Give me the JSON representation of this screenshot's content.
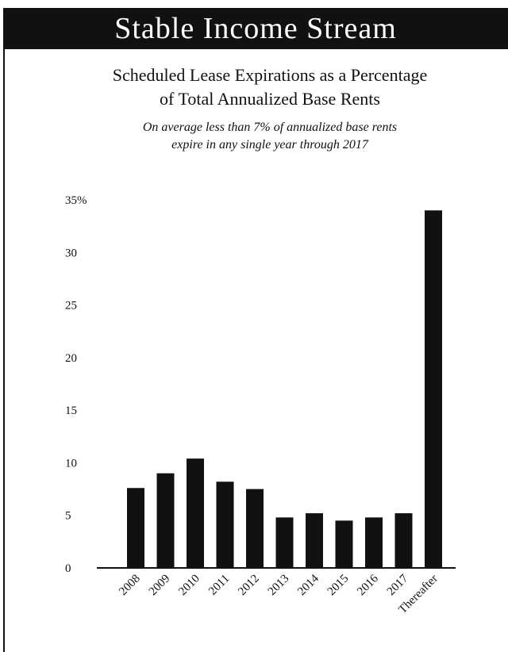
{
  "header": {
    "title": "Stable Income Stream"
  },
  "chart_data": {
    "type": "bar",
    "title_line1": "Scheduled Lease Expirations as a Percentage",
    "title_line2": "of Total Annualized Base Rents",
    "subtitle_line1": "On average less than 7% of annualized base rents",
    "subtitle_line2": "expire in any single year through 2017",
    "categories": [
      "2008",
      "2009",
      "2010",
      "2011",
      "2012",
      "2013",
      "2014",
      "2015",
      "2016",
      "2017",
      "Thereafter"
    ],
    "values": [
      7.6,
      9.0,
      10.4,
      8.2,
      7.5,
      4.8,
      5.2,
      4.5,
      4.8,
      5.2,
      34.0
    ],
    "yticks": [
      "0",
      "5",
      "10",
      "15",
      "20",
      "25",
      "30",
      "35%"
    ],
    "ylim": [
      0,
      35
    ],
    "grid": false,
    "colors": {
      "bar": "#111111",
      "axis": "#111111"
    }
  }
}
